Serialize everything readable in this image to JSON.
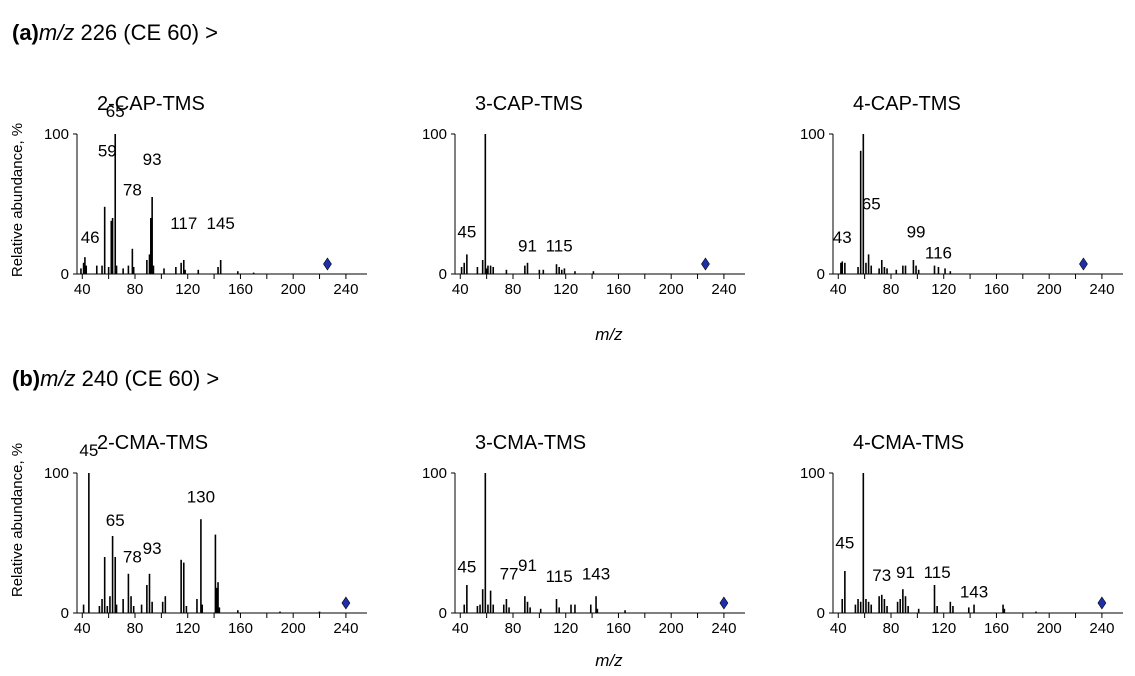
{
  "sections": [
    {
      "letter": "(a)",
      "mz_italic": "m/z",
      "rest": " 226 (CE 60) >"
    },
    {
      "letter": "(b)",
      "mz_italic": "m/z",
      "rest": " 240 (CE 60) >"
    }
  ],
  "y_axis_label": "Relative abundance, %",
  "x_axis_label": "m/z",
  "marker_color": "#1f2fa8",
  "chart_data": [
    {
      "type": "bar",
      "title": "2-CAP-TMS",
      "section": 0,
      "col": 0,
      "xlim": [
        36,
        256
      ],
      "ylim": [
        0,
        100
      ],
      "x_ticks": [
        40,
        80,
        120,
        160,
        200,
        240
      ],
      "y_ticks": [
        0,
        100
      ],
      "precursor_mz": 226,
      "peaks": [
        [
          39,
          4
        ],
        [
          41,
          8
        ],
        [
          42,
          12
        ],
        [
          43,
          6
        ],
        [
          51,
          6
        ],
        [
          55,
          6
        ],
        [
          57,
          48
        ],
        [
          60,
          5
        ],
        [
          62,
          38
        ],
        [
          63,
          40
        ],
        [
          65,
          100
        ],
        [
          66,
          6
        ],
        [
          71,
          4
        ],
        [
          75,
          6
        ],
        [
          78,
          18
        ],
        [
          79,
          5
        ],
        [
          89,
          10
        ],
        [
          91,
          14
        ],
        [
          92,
          40
        ],
        [
          93,
          55
        ],
        [
          94,
          6
        ],
        [
          102,
          4
        ],
        [
          111,
          5
        ],
        [
          115,
          8
        ],
        [
          117,
          10
        ],
        [
          118,
          3
        ],
        [
          128,
          3
        ],
        [
          143,
          5
        ],
        [
          145,
          10
        ],
        [
          158,
          2
        ],
        [
          170,
          1
        ]
      ],
      "labels": [
        {
          "mz": 46,
          "text": "46",
          "y": 22
        },
        {
          "mz": 59,
          "text": "59",
          "y": 84
        },
        {
          "mz": 65,
          "text": "65",
          "y": 112
        },
        {
          "mz": 78,
          "text": "78",
          "y": 56
        },
        {
          "mz": 93,
          "text": "93",
          "y": 78
        },
        {
          "mz": 117,
          "text": "117",
          "y": 32
        },
        {
          "mz": 145,
          "text": "145",
          "y": 32
        }
      ]
    },
    {
      "type": "bar",
      "title": "3-CAP-TMS",
      "section": 0,
      "col": 1,
      "xlim": [
        36,
        256
      ],
      "ylim": [
        0,
        100
      ],
      "x_ticks": [
        40,
        80,
        120,
        160,
        200,
        240
      ],
      "y_ticks": [
        0,
        100
      ],
      "precursor_mz": 226,
      "peaks": [
        [
          41,
          5
        ],
        [
          43,
          8
        ],
        [
          45,
          14
        ],
        [
          53,
          5
        ],
        [
          57,
          10
        ],
        [
          59,
          100
        ],
        [
          60,
          4
        ],
        [
          61,
          6
        ],
        [
          63,
          6
        ],
        [
          65,
          5
        ],
        [
          75,
          3
        ],
        [
          89,
          6
        ],
        [
          91,
          8
        ],
        [
          100,
          3
        ],
        [
          103,
          3
        ],
        [
          113,
          7
        ],
        [
          115,
          5
        ],
        [
          117,
          3
        ],
        [
          119,
          4
        ],
        [
          127,
          2
        ],
        [
          141,
          2
        ]
      ],
      "labels": [
        {
          "mz": 45,
          "text": "45",
          "y": 26
        },
        {
          "mz": 91,
          "text": "91",
          "y": 16
        },
        {
          "mz": 115,
          "text": "115",
          "y": 16
        }
      ]
    },
    {
      "type": "bar",
      "title": "4-CAP-TMS",
      "section": 0,
      "col": 2,
      "xlim": [
        36,
        256
      ],
      "ylim": [
        0,
        100
      ],
      "x_ticks": [
        40,
        80,
        120,
        160,
        200,
        240
      ],
      "y_ticks": [
        0,
        100
      ],
      "precursor_mz": 226,
      "peaks": [
        [
          42,
          8
        ],
        [
          43,
          9
        ],
        [
          45,
          8
        ],
        [
          55,
          5
        ],
        [
          57,
          88
        ],
        [
          59,
          100
        ],
        [
          61,
          8
        ],
        [
          63,
          14
        ],
        [
          65,
          6
        ],
        [
          71,
          4
        ],
        [
          73,
          10
        ],
        [
          75,
          5
        ],
        [
          77,
          4
        ],
        [
          84,
          3
        ],
        [
          89,
          6
        ],
        [
          91,
          6
        ],
        [
          97,
          10
        ],
        [
          99,
          6
        ],
        [
          101,
          3
        ],
        [
          113,
          6
        ],
        [
          116,
          5
        ],
        [
          121,
          4
        ],
        [
          125,
          2
        ]
      ],
      "labels": [
        {
          "mz": 43,
          "text": "43",
          "y": 22
        },
        {
          "mz": 65,
          "text": "65",
          "y": 46
        },
        {
          "mz": 99,
          "text": "99",
          "y": 26
        },
        {
          "mz": 116,
          "text": "116",
          "y": 11
        }
      ]
    },
    {
      "type": "bar",
      "title": "2-CMA-TMS",
      "section": 1,
      "col": 0,
      "xlim": [
        36,
        256
      ],
      "ylim": [
        0,
        100
      ],
      "x_ticks": [
        40,
        80,
        120,
        160,
        200,
        240
      ],
      "y_ticks": [
        0,
        100
      ],
      "precursor_mz": 240,
      "peaks": [
        [
          41,
          6
        ],
        [
          45,
          100
        ],
        [
          53,
          5
        ],
        [
          55,
          10
        ],
        [
          57,
          40
        ],
        [
          59,
          5
        ],
        [
          61,
          12
        ],
        [
          63,
          55
        ],
        [
          65,
          40
        ],
        [
          66,
          6
        ],
        [
          71,
          10
        ],
        [
          75,
          28
        ],
        [
          77,
          12
        ],
        [
          79,
          5
        ],
        [
          85,
          6
        ],
        [
          89,
          20
        ],
        [
          91,
          28
        ],
        [
          93,
          8
        ],
        [
          101,
          8
        ],
        [
          103,
          12
        ],
        [
          115,
          38
        ],
        [
          117,
          36
        ],
        [
          119,
          5
        ],
        [
          127,
          10
        ],
        [
          130,
          67
        ],
        [
          131,
          6
        ],
        [
          141,
          56
        ],
        [
          142,
          18
        ],
        [
          143,
          22
        ],
        [
          144,
          4
        ],
        [
          158,
          2
        ],
        [
          190,
          1
        ],
        [
          220,
          1
        ]
      ],
      "labels": [
        {
          "mz": 45,
          "text": "45",
          "y": 112
        },
        {
          "mz": 65,
          "text": "65",
          "y": 62
        },
        {
          "mz": 78,
          "text": "78",
          "y": 36
        },
        {
          "mz": 93,
          "text": "93",
          "y": 42
        },
        {
          "mz": 130,
          "text": "130",
          "y": 79
        }
      ]
    },
    {
      "type": "bar",
      "title": "3-CMA-TMS",
      "section": 1,
      "col": 1,
      "xlim": [
        36,
        256
      ],
      "ylim": [
        0,
        100
      ],
      "x_ticks": [
        40,
        80,
        120,
        160,
        200,
        240
      ],
      "y_ticks": [
        0,
        100
      ],
      "precursor_mz": 240,
      "peaks": [
        [
          43,
          6
        ],
        [
          45,
          20
        ],
        [
          53,
          5
        ],
        [
          55,
          6
        ],
        [
          57,
          17
        ],
        [
          59,
          100
        ],
        [
          61,
          6
        ],
        [
          63,
          16
        ],
        [
          65,
          6
        ],
        [
          73,
          6
        ],
        [
          75,
          10
        ],
        [
          77,
          4
        ],
        [
          89,
          12
        ],
        [
          91,
          8
        ],
        [
          93,
          4
        ],
        [
          101,
          3
        ],
        [
          113,
          10
        ],
        [
          115,
          4
        ],
        [
          124,
          6
        ],
        [
          127,
          6
        ],
        [
          139,
          6
        ],
        [
          143,
          12
        ],
        [
          144,
          3
        ],
        [
          165,
          2
        ]
      ],
      "labels": [
        {
          "mz": 45,
          "text": "45",
          "y": 29
        },
        {
          "mz": 77,
          "text": "77",
          "y": 24
        },
        {
          "mz": 91,
          "text": "91",
          "y": 30
        },
        {
          "mz": 115,
          "text": "115",
          "y": 22
        },
        {
          "mz": 143,
          "text": "143",
          "y": 24
        }
      ]
    },
    {
      "type": "bar",
      "title": "4-CMA-TMS",
      "section": 1,
      "col": 2,
      "xlim": [
        36,
        256
      ],
      "ylim": [
        0,
        100
      ],
      "x_ticks": [
        40,
        80,
        120,
        160,
        200,
        240
      ],
      "y_ticks": [
        0,
        100
      ],
      "precursor_mz": 240,
      "peaks": [
        [
          43,
          10
        ],
        [
          45,
          30
        ],
        [
          53,
          6
        ],
        [
          55,
          10
        ],
        [
          57,
          8
        ],
        [
          59,
          100
        ],
        [
          61,
          10
        ],
        [
          63,
          8
        ],
        [
          65,
          6
        ],
        [
          71,
          12
        ],
        [
          73,
          13
        ],
        [
          75,
          10
        ],
        [
          77,
          5
        ],
        [
          85,
          8
        ],
        [
          87,
          10
        ],
        [
          89,
          17
        ],
        [
          91,
          12
        ],
        [
          93,
          5
        ],
        [
          101,
          3
        ],
        [
          113,
          20
        ],
        [
          115,
          5
        ],
        [
          125,
          8
        ],
        [
          127,
          5
        ],
        [
          139,
          4
        ],
        [
          143,
          6
        ],
        [
          165,
          6
        ],
        [
          166,
          3
        ],
        [
          190,
          1
        ]
      ],
      "labels": [
        {
          "mz": 45,
          "text": "45",
          "y": 46
        },
        {
          "mz": 73,
          "text": "73",
          "y": 23
        },
        {
          "mz": 91,
          "text": "91",
          "y": 25
        },
        {
          "mz": 115,
          "text": "115",
          "y": 25
        },
        {
          "mz": 143,
          "text": "143",
          "y": 11
        }
      ]
    }
  ]
}
